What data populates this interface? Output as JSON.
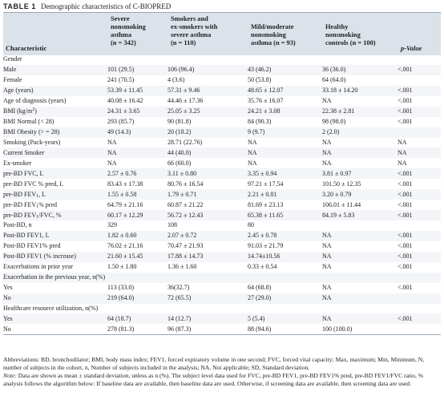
{
  "table_label": "TABLE 1",
  "table_title": "Demographic characteristics of C-BIOPRED",
  "columns": {
    "characteristic": "Characteristic",
    "severe": [
      "Severe",
      "nonsmoking",
      "asthma",
      "(n = 342)"
    ],
    "smokers": [
      "Smokers and",
      "ex-smokers with",
      "severe asthma",
      "(n = 110)"
    ],
    "mild": [
      "Mild/moderate",
      "nonsmoking",
      "asthma (n = 93)"
    ],
    "healthy": [
      "Healthy",
      "nonsmoking",
      "controls (n = 100)"
    ],
    "pvalue": "p-Value"
  },
  "rows": [
    {
      "label": "Gender",
      "indent": 0,
      "shade": false,
      "severe": "",
      "smokers": "",
      "mild": "",
      "healthy": "",
      "p": ""
    },
    {
      "label": "Male",
      "indent": 1,
      "shade": true,
      "severe": "101 (29.5)",
      "smokers": "106 (96.4)",
      "mild": "43 (46.2)",
      "healthy": "36 (36.0)",
      "p": "<.001"
    },
    {
      "label": "Female",
      "indent": 1,
      "shade": false,
      "severe": "241 (70.5)",
      "smokers": "4 (3.6)",
      "mild": "50 (53.8)",
      "healthy": "64 (64.0)",
      "p": ""
    },
    {
      "label": "Age (years)",
      "indent": 0,
      "shade": true,
      "severe": "53.39 ± 11.45",
      "smokers": "57.31 ± 9.46",
      "mild": "48.65 ± 12.07",
      "healthy": "33.18 ± 14.20",
      "p": "<.001"
    },
    {
      "label": "Age of diagnosis (years)",
      "indent": 0,
      "shade": false,
      "severe": "40.08 ± 16.42",
      "smokers": "44.46 ± 17.36",
      "mild": "35.76 ± 16.07",
      "healthy": "NA",
      "p": "<.001"
    },
    {
      "label": "BMI (kg/m",
      "sup": "2",
      "suffix": ")",
      "indent": 0,
      "shade": true,
      "severe": "24.31 ± 3.65",
      "smokers": "25.05 ± 3.25",
      "mild": "24.21 ± 3.08",
      "healthy": "22.38 ± 2.81",
      "p": "<.001"
    },
    {
      "label": "BMI Normal (< 28)",
      "indent": 2,
      "shade": false,
      "severe": "293 (85.7)",
      "smokers": "90 (81.8)",
      "mild": "84 (90.3)",
      "healthy": "98 (98.0)",
      "p": "<.001"
    },
    {
      "label": "BMI Obesity (> = 28)",
      "indent": 2,
      "shade": true,
      "severe": "49 (14.3)",
      "smokers": "20 (18.2)",
      "mild": "9 (9.7)",
      "healthy": "2 (2.0)",
      "p": ""
    },
    {
      "label": "Smoking (Pack-years)",
      "indent": 0,
      "shade": false,
      "severe": "NA",
      "smokers": "28.71 (22.76)",
      "mild": "NA",
      "healthy": "NA",
      "p": "NA"
    },
    {
      "label": "Current Smoker",
      "indent": 0,
      "shade": true,
      "severe": "NA",
      "smokers": "44 (40.0)",
      "mild": "NA",
      "healthy": "NA",
      "p": "NA"
    },
    {
      "label": "Ex-smoker",
      "indent": 0,
      "shade": false,
      "severe": "NA",
      "smokers": "66 (60.0)",
      "mild": "NA",
      "healthy": "NA",
      "p": "NA"
    },
    {
      "label": "pre-BD FVC, L",
      "indent": 0,
      "shade": true,
      "severe": "2.57 ± 0.76",
      "smokers": "3.11 ± 0.80",
      "mild": "3.35 ± 0.94",
      "healthy": "3.81 ± 0.97",
      "p": "<.001"
    },
    {
      "label": "pre-BD FVC % pred, L",
      "indent": 0,
      "shade": false,
      "severe": "83.43 ± 17.38",
      "smokers": "80.76 ± 16.54",
      "mild": "97.21 ± 17.54",
      "healthy": "101.50 ± 12.35",
      "p": "<.001"
    },
    {
      "label": "pre-BD FEV",
      "sub": "1",
      "suffix": ", L",
      "indent": 0,
      "shade": true,
      "severe": "1.55 ± 0.58",
      "smokers": "1.79 ± 0.71",
      "mild": "2.21 ± 0.81",
      "healthy": "3.20 ± 0.79",
      "p": "<.001"
    },
    {
      "label": "pre-BD FEV",
      "sub": "1",
      "suffix": "% pred",
      "indent": 0,
      "shade": false,
      "severe": "64.79 ± 21.16",
      "smokers": "60.87 ± 21.22",
      "mild": "81.69 ± 23.13",
      "healthy": "106.01 ± 11.44",
      "p": "<.001"
    },
    {
      "label": "pre-BD FEV",
      "sub": "1",
      "suffix": "/FVC, %",
      "indent": 0,
      "shade": true,
      "severe": "60.17 ± 12.29",
      "smokers": "56.72 ± 12.43",
      "mild": "65.38 ± 11.65",
      "healthy": "84.19 ± 5.83",
      "p": "<.001"
    },
    {
      "label": "Post-BD, n",
      "indent": 0,
      "shade": false,
      "severe": "329",
      "smokers": "108",
      "mild": "80",
      "healthy": "",
      "p": ""
    },
    {
      "label": "Post-BD FEV1, L",
      "indent": 0,
      "shade": true,
      "severe": "1.82 ± 0.60",
      "smokers": "2.07 ± 0.72",
      "mild": "2.45 ± 0.78",
      "healthy": "NA",
      "p": "<.001"
    },
    {
      "label": "Post-BD FEV1% pred",
      "indent": 0,
      "shade": false,
      "severe": "76.02 ± 21.16",
      "smokers": "70.47 ± 21.93",
      "mild": "91.03 ± 21.79",
      "healthy": "NA",
      "p": "<.001"
    },
    {
      "label": "Post-BD FEV1 (% increase)",
      "indent": 0,
      "shade": true,
      "severe": "21.60 ± 15.45",
      "smokers": "17.88 ± 14.73",
      "mild": "14.74±10.56",
      "healthy": "NA",
      "p": "<.001"
    },
    {
      "label": "Exacerbations in prior year",
      "indent": 0,
      "shade": false,
      "severe": "1.50 ± 1.80",
      "smokers": "1.36 ± 1.60",
      "mild": "0.33 ± 0.54",
      "healthy": "NA",
      "p": "<.001"
    },
    {
      "label": "Exacerbation in the previous year, n(%)",
      "indent": 0,
      "shade": true,
      "severe": "",
      "smokers": "",
      "mild": "",
      "healthy": "",
      "p": ""
    },
    {
      "label": "Yes",
      "indent": 1,
      "shade": false,
      "severe": "113 (33.0)",
      "smokers": "36(32.7)",
      "mild": "64 (68.8)",
      "healthy": "NA",
      "p": "<.001"
    },
    {
      "label": "No",
      "indent": 1,
      "shade": true,
      "severe": "219 (64.0)",
      "smokers": "72 (65.5)",
      "mild": "27 (29.0)",
      "healthy": "NA",
      "p": ""
    },
    {
      "label": "Healthcare resource utilization, n(%)",
      "indent": 0,
      "shade": false,
      "severe": "",
      "smokers": "",
      "mild": "",
      "healthy": "",
      "p": ""
    },
    {
      "label": "Yes",
      "indent": 1,
      "shade": true,
      "severe": "64 (18.7)",
      "smokers": "14 (12.7)",
      "mild": "5 (5.4)",
      "healthy": "NA",
      "p": "<.001"
    },
    {
      "label": "No",
      "indent": 1,
      "shade": false,
      "severe": "278 (81.3)",
      "smokers": "96 (87.3)",
      "mild": "88 (94.6)",
      "healthy": "100 (100.0)",
      "p": ""
    }
  ],
  "footnotes": {
    "abbreviations": "Abbreviations: BD, bronchodilator; BMI, body mass index; FEV1, forced expiratory volume in one second; FVC, forced vital capacity; Max, maximum; Min, Minimum, N, number of subjects in the cohort, n, Number of subjects included in the analysis; NA, Not applicable; SD, Standard deviation.",
    "note_label": "Note:",
    "note_text": " Data are shown as mean ± standard deviation, unless as n (%). The subject level data used for FVC, pre-BD FEV1, pre-BD FEV1% pred, pre-BD FEV1/FVC ratio, % analysis follows the algorithm below: If baseline data are available, then baseline data are used. Otherwise, if screening data are available, then screening data are used."
  }
}
